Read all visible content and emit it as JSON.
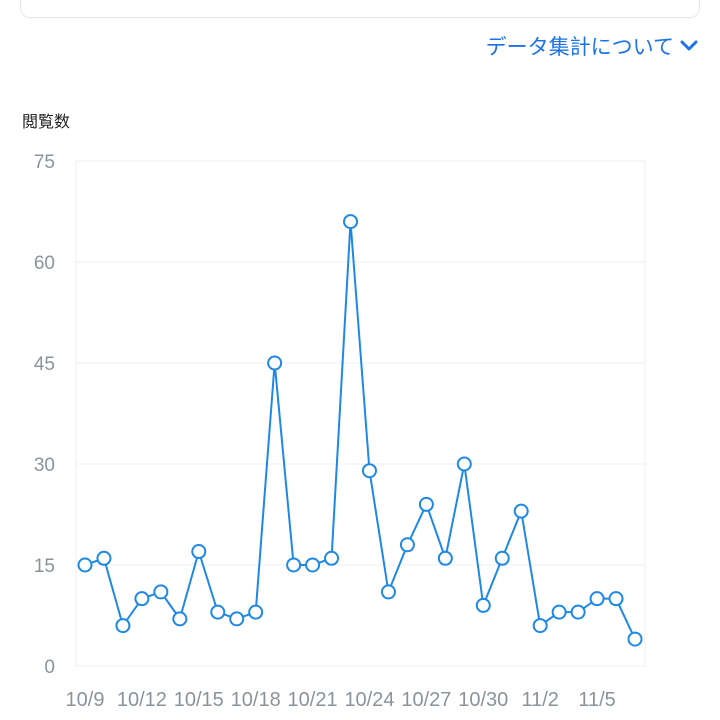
{
  "header": {
    "data_link_label": "データ集計について",
    "data_link_icon": "chevron-down-icon"
  },
  "colors": {
    "accent": "#1a73e8",
    "line": "#1e88e5",
    "grid": "#eceff2",
    "tick_text": "#8a939c"
  },
  "chart_data": {
    "type": "line",
    "title": "閲覧数",
    "xlabel": "",
    "ylabel": "",
    "ylim": [
      0,
      75
    ],
    "yticks": [
      0,
      15,
      30,
      45,
      60,
      75
    ],
    "grid": true,
    "legend": "none",
    "x": [
      "10/9",
      "10/10",
      "10/11",
      "10/12",
      "10/13",
      "10/14",
      "10/15",
      "10/16",
      "10/17",
      "10/18",
      "10/19",
      "10/20",
      "10/21",
      "10/22",
      "10/23",
      "10/24",
      "10/25",
      "10/26",
      "10/27",
      "10/28",
      "10/29",
      "10/30",
      "10/31",
      "11/1",
      "11/2",
      "11/3",
      "11/4",
      "11/5",
      "11/6",
      "11/7"
    ],
    "xtick_labels": [
      "10/9",
      "10/12",
      "10/15",
      "10/18",
      "10/21",
      "10/24",
      "10/27",
      "10/30",
      "11/2",
      "11/5"
    ],
    "series": [
      {
        "values": [
          15,
          16,
          6,
          10,
          11,
          7,
          17,
          8,
          7,
          8,
          45,
          15,
          15,
          16,
          66,
          29,
          11,
          18,
          24,
          16,
          30,
          9,
          16,
          23,
          6,
          8,
          8,
          10,
          10,
          4
        ]
      }
    ]
  }
}
